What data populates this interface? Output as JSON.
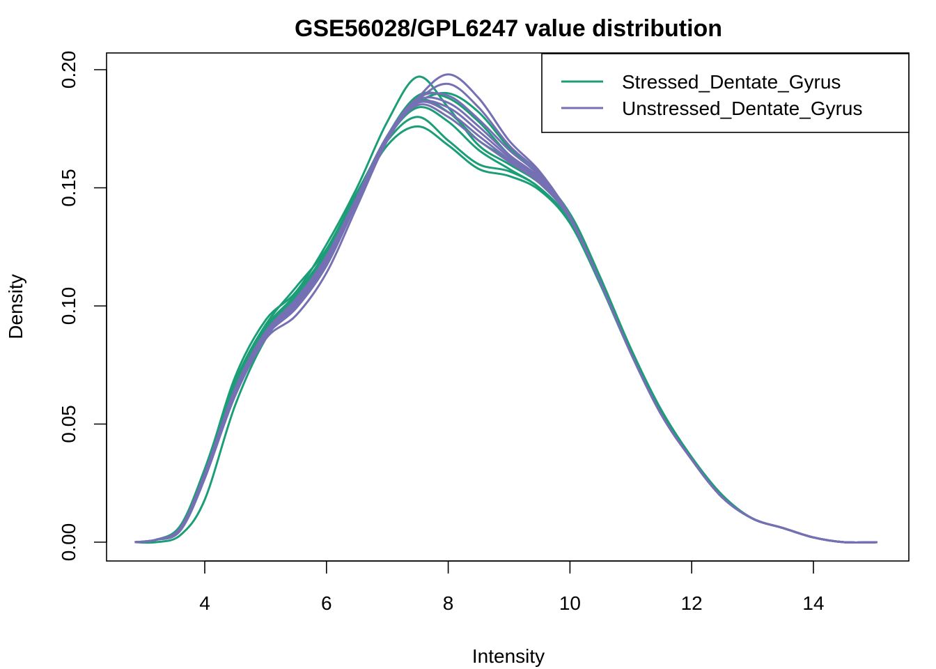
{
  "chart_data": {
    "type": "line",
    "title": "GSE56028/GPL6247 value distribution",
    "xlabel": "Intensity",
    "ylabel": "Density",
    "xlim": [
      2.8,
      15.1
    ],
    "ylim": [
      0,
      0.2
    ],
    "x_ticks": [
      4,
      6,
      8,
      10,
      12,
      14
    ],
    "y_ticks": [
      0.0,
      0.05,
      0.1,
      0.15,
      0.2
    ],
    "x_tick_labels": [
      "4",
      "6",
      "8",
      "10",
      "12",
      "14"
    ],
    "y_tick_labels": [
      "0.00",
      "0.05",
      "0.10",
      "0.15",
      "0.20"
    ],
    "grid": false,
    "legend_position": "top-right",
    "colors": {
      "Stressed_Dentate_Gyrus": "#1B9E77",
      "Unstressed_Dentate_Gyrus": "#7570B3"
    },
    "legend": [
      {
        "name": "Stressed_Dentate_Gyrus",
        "color": "#1B9E77"
      },
      {
        "name": "Unstressed_Dentate_Gyrus",
        "color": "#7570B3"
      }
    ],
    "x": [
      2.85,
      3.2,
      3.6,
      4.0,
      4.5,
      5.0,
      5.5,
      6.0,
      6.5,
      7.0,
      7.5,
      8.0,
      8.5,
      9.0,
      9.5,
      10.0,
      10.5,
      11.0,
      11.5,
      12.0,
      12.5,
      13.0,
      13.5,
      14.0,
      14.5,
      15.05
    ],
    "series": [
      {
        "group": "Stressed_Dentate_Gyrus",
        "values": [
          0.0,
          0.001,
          0.006,
          0.03,
          0.07,
          0.094,
          0.106,
          0.126,
          0.15,
          0.178,
          0.197,
          0.184,
          0.168,
          0.16,
          0.152,
          0.139,
          0.112,
          0.082,
          0.056,
          0.036,
          0.02,
          0.01,
          0.006,
          0.002,
          0.0,
          0.0
        ]
      },
      {
        "group": "Stressed_Dentate_Gyrus",
        "values": [
          0.0,
          0.001,
          0.007,
          0.031,
          0.068,
          0.092,
          0.108,
          0.124,
          0.148,
          0.17,
          0.18,
          0.17,
          0.16,
          0.157,
          0.15,
          0.136,
          0.11,
          0.081,
          0.055,
          0.035,
          0.019,
          0.01,
          0.006,
          0.002,
          0.0,
          0.0
        ]
      },
      {
        "group": "Stressed_Dentate_Gyrus",
        "values": [
          0.0,
          0.001,
          0.006,
          0.029,
          0.066,
          0.09,
          0.104,
          0.122,
          0.146,
          0.168,
          0.176,
          0.168,
          0.158,
          0.155,
          0.149,
          0.135,
          0.109,
          0.08,
          0.055,
          0.035,
          0.019,
          0.01,
          0.006,
          0.002,
          0.0,
          0.0
        ]
      },
      {
        "group": "Stressed_Dentate_Gyrus",
        "values": [
          0.0,
          0.001,
          0.006,
          0.03,
          0.068,
          0.091,
          0.105,
          0.123,
          0.147,
          0.172,
          0.187,
          0.182,
          0.17,
          0.162,
          0.153,
          0.138,
          0.111,
          0.081,
          0.055,
          0.035,
          0.019,
          0.01,
          0.006,
          0.002,
          0.0,
          0.0
        ]
      },
      {
        "group": "Stressed_Dentate_Gyrus",
        "values": [
          0.0,
          0.0,
          0.003,
          0.018,
          0.058,
          0.086,
          0.102,
          0.12,
          0.145,
          0.172,
          0.189,
          0.188,
          0.178,
          0.164,
          0.154,
          0.138,
          0.111,
          0.081,
          0.055,
          0.035,
          0.019,
          0.01,
          0.006,
          0.002,
          0.0,
          0.0
        ]
      },
      {
        "group": "Stressed_Dentate_Gyrus",
        "values": [
          0.0,
          0.001,
          0.005,
          0.028,
          0.066,
          0.09,
          0.104,
          0.122,
          0.146,
          0.172,
          0.186,
          0.19,
          0.182,
          0.167,
          0.155,
          0.139,
          0.112,
          0.081,
          0.055,
          0.035,
          0.019,
          0.01,
          0.006,
          0.002,
          0.0,
          0.0
        ]
      },
      {
        "group": "Stressed_Dentate_Gyrus",
        "values": [
          0.0,
          0.001,
          0.006,
          0.029,
          0.067,
          0.091,
          0.105,
          0.123,
          0.147,
          0.171,
          0.184,
          0.178,
          0.166,
          0.158,
          0.15,
          0.136,
          0.11,
          0.081,
          0.055,
          0.035,
          0.019,
          0.01,
          0.006,
          0.002,
          0.0,
          0.0
        ]
      },
      {
        "group": "Unstressed_Dentate_Gyrus",
        "values": [
          0.0,
          0.001,
          0.005,
          0.027,
          0.062,
          0.086,
          0.096,
          0.114,
          0.142,
          0.17,
          0.188,
          0.198,
          0.188,
          0.17,
          0.157,
          0.138,
          0.11,
          0.08,
          0.054,
          0.035,
          0.019,
          0.01,
          0.006,
          0.002,
          0.0,
          0.0
        ]
      },
      {
        "group": "Unstressed_Dentate_Gyrus",
        "values": [
          0.0,
          0.001,
          0.005,
          0.027,
          0.063,
          0.087,
          0.099,
          0.117,
          0.144,
          0.171,
          0.187,
          0.194,
          0.184,
          0.168,
          0.156,
          0.137,
          0.11,
          0.08,
          0.054,
          0.035,
          0.019,
          0.01,
          0.006,
          0.002,
          0.0,
          0.0
        ]
      },
      {
        "group": "Unstressed_Dentate_Gyrus",
        "values": [
          0.0,
          0.001,
          0.006,
          0.028,
          0.064,
          0.088,
          0.102,
          0.12,
          0.146,
          0.172,
          0.186,
          0.184,
          0.174,
          0.163,
          0.153,
          0.137,
          0.11,
          0.08,
          0.054,
          0.035,
          0.019,
          0.01,
          0.006,
          0.002,
          0.0,
          0.0
        ]
      },
      {
        "group": "Unstressed_Dentate_Gyrus",
        "values": [
          0.0,
          0.001,
          0.006,
          0.029,
          0.065,
          0.089,
          0.103,
          0.121,
          0.146,
          0.171,
          0.185,
          0.18,
          0.17,
          0.161,
          0.152,
          0.137,
          0.11,
          0.08,
          0.054,
          0.035,
          0.019,
          0.01,
          0.006,
          0.002,
          0.0,
          0.0
        ]
      },
      {
        "group": "Unstressed_Dentate_Gyrus",
        "values": [
          0.0,
          0.001,
          0.006,
          0.029,
          0.065,
          0.089,
          0.102,
          0.121,
          0.146,
          0.172,
          0.186,
          0.182,
          0.172,
          0.162,
          0.153,
          0.137,
          0.11,
          0.08,
          0.054,
          0.035,
          0.019,
          0.01,
          0.006,
          0.002,
          0.0,
          0.0
        ]
      },
      {
        "group": "Unstressed_Dentate_Gyrus",
        "values": [
          0.0,
          0.001,
          0.006,
          0.028,
          0.064,
          0.088,
          0.101,
          0.119,
          0.145,
          0.171,
          0.187,
          0.186,
          0.176,
          0.164,
          0.154,
          0.137,
          0.11,
          0.08,
          0.054,
          0.035,
          0.019,
          0.01,
          0.006,
          0.002,
          0.0,
          0.0
        ]
      },
      {
        "group": "Unstressed_Dentate_Gyrus",
        "values": [
          0.0,
          0.001,
          0.005,
          0.027,
          0.063,
          0.087,
          0.1,
          0.118,
          0.145,
          0.172,
          0.188,
          0.189,
          0.179,
          0.166,
          0.155,
          0.137,
          0.11,
          0.08,
          0.054,
          0.035,
          0.019,
          0.01,
          0.006,
          0.002,
          0.0,
          0.0
        ]
      }
    ]
  }
}
